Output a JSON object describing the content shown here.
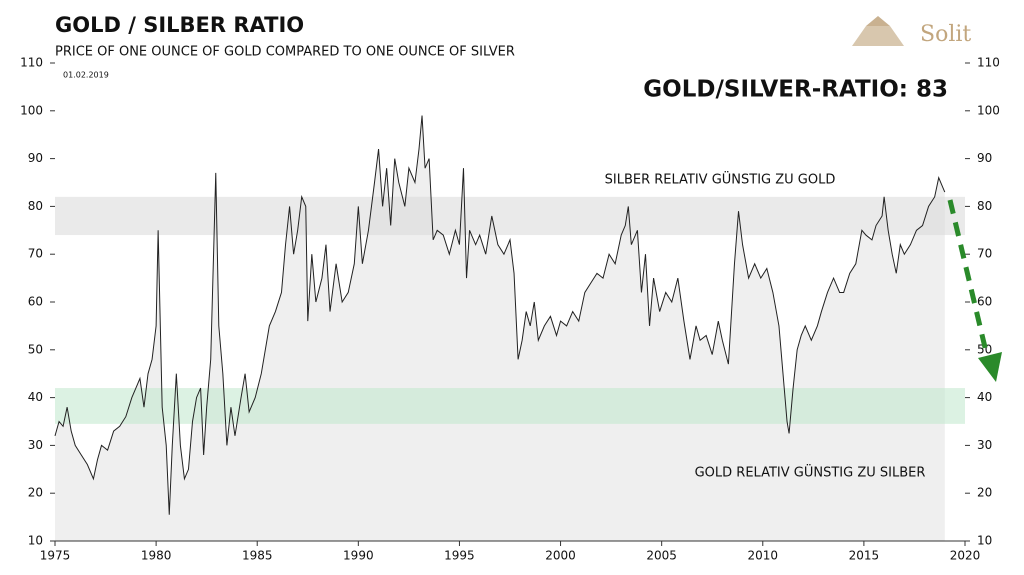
{
  "chart_data": {
    "type": "line",
    "title": "GOLD / SILBER  RATIO",
    "subtitle": "PRICE OF ONE OUNCE OF GOLD COMPARED TO ONE OUNCE OF SILVER",
    "date_label": "01.02.2019",
    "headline": "GOLD/SILVER-RATIO: 83",
    "logo": "Solit",
    "color": "#222222",
    "fill": "#efefef",
    "xlim": [
      1975,
      2020
    ],
    "xticks": [
      1975,
      1980,
      1985,
      1990,
      1995,
      2000,
      2005,
      2010,
      2015,
      2020
    ],
    "ylim": [
      10,
      110
    ],
    "yticks": [
      10,
      20,
      30,
      40,
      50,
      60,
      70,
      80,
      90,
      100,
      110
    ],
    "bands": [
      {
        "label": "SILBER RELATIV GÜNSTIG ZU GOLD",
        "range": [
          74,
          82
        ],
        "color": "#d8d8d8"
      },
      {
        "label": "GOLD RELATIV GÜNSTIG ZU SILBER",
        "range": [
          34.5,
          42
        ],
        "color": "#bfe8cc"
      }
    ],
    "x": [
      1975.0,
      1975.2,
      1975.4,
      1975.6,
      1975.8,
      1976.0,
      1976.3,
      1976.6,
      1976.9,
      1977.1,
      1977.3,
      1977.6,
      1977.9,
      1978.2,
      1978.5,
      1978.8,
      1979.0,
      1979.2,
      1979.4,
      1979.6,
      1979.8,
      1980.0,
      1980.1,
      1980.3,
      1980.5,
      1980.65,
      1980.8,
      1981.0,
      1981.2,
      1981.4,
      1981.6,
      1981.8,
      1982.0,
      1982.2,
      1982.35,
      1982.5,
      1982.7,
      1982.95,
      1983.1,
      1983.3,
      1983.5,
      1983.7,
      1983.9,
      1984.2,
      1984.4,
      1984.6,
      1984.9,
      1985.2,
      1985.4,
      1985.6,
      1985.9,
      1986.2,
      1986.4,
      1986.6,
      1986.8,
      1987.0,
      1987.2,
      1987.4,
      1987.5,
      1987.7,
      1987.9,
      1988.2,
      1988.4,
      1988.6,
      1988.9,
      1989.2,
      1989.5,
      1989.8,
      1990.0,
      1990.2,
      1990.5,
      1990.8,
      1991.0,
      1991.2,
      1991.4,
      1991.6,
      1991.8,
      1992.0,
      1992.3,
      1992.5,
      1992.8,
      1993.0,
      1993.15,
      1993.3,
      1993.5,
      1993.7,
      1993.9,
      1994.2,
      1994.5,
      1994.8,
      1995.0,
      1995.2,
      1995.35,
      1995.5,
      1995.8,
      1996.0,
      1996.3,
      1996.6,
      1996.9,
      1997.2,
      1997.5,
      1997.7,
      1997.9,
      1998.1,
      1998.3,
      1998.5,
      1998.7,
      1998.9,
      1999.2,
      1999.5,
      1999.8,
      2000.0,
      2000.3,
      2000.6,
      2000.9,
      2001.2,
      2001.5,
      2001.8,
      2002.1,
      2002.4,
      2002.7,
      2003.0,
      2003.2,
      2003.35,
      2003.5,
      2003.8,
      2004.0,
      2004.2,
      2004.4,
      2004.6,
      2004.9,
      2005.2,
      2005.5,
      2005.8,
      2006.1,
      2006.4,
      2006.7,
      2006.9,
      2007.2,
      2007.5,
      2007.8,
      2008.0,
      2008.3,
      2008.6,
      2008.8,
      2009.0,
      2009.3,
      2009.6,
      2009.9,
      2010.2,
      2010.5,
      2010.8,
      2011.0,
      2011.2,
      2011.3,
      2011.5,
      2011.7,
      2011.9,
      2012.1,
      2012.4,
      2012.7,
      2012.9,
      2013.2,
      2013.5,
      2013.8,
      2014.0,
      2014.3,
      2014.6,
      2014.9,
      2015.1,
      2015.4,
      2015.6,
      2015.9,
      2016.0,
      2016.2,
      2016.4,
      2016.6,
      2016.8,
      2017.0,
      2017.3,
      2017.6,
      2017.9,
      2018.2,
      2018.5,
      2018.7,
      2018.9,
      2019.0
    ],
    "values": [
      32,
      35,
      34,
      38,
      33,
      30,
      28,
      26,
      23,
      27,
      30,
      29,
      33,
      34,
      36,
      40,
      42,
      44,
      38,
      45,
      48,
      55,
      75,
      38,
      30,
      15.5,
      30,
      45,
      30,
      23,
      25,
      35,
      40,
      42,
      28,
      38,
      48,
      87,
      55,
      45,
      30,
      38,
      32,
      40,
      45,
      37,
      40,
      45,
      50,
      55,
      58,
      62,
      72,
      80,
      70,
      75,
      82,
      80,
      56,
      70,
      60,
      65,
      72,
      58,
      68,
      60,
      62,
      68,
      80,
      68,
      75,
      85,
      92,
      80,
      88,
      76,
      90,
      85,
      80,
      88,
      85,
      92,
      99,
      88,
      90,
      73,
      75,
      74,
      70,
      75,
      72,
      88,
      65,
      75,
      72,
      74,
      70,
      78,
      72,
      70,
      73,
      66,
      48,
      52,
      58,
      55,
      60,
      52,
      55,
      57,
      53,
      56,
      55,
      58,
      56,
      62,
      64,
      66,
      65,
      70,
      68,
      74,
      76,
      80,
      72,
      75,
      62,
      70,
      55,
      65,
      58,
      62,
      60,
      65,
      56,
      48,
      55,
      52,
      53,
      49,
      56,
      52,
      47,
      68,
      79,
      72,
      65,
      68,
      65,
      67,
      62,
      55,
      45,
      35,
      32.5,
      42,
      50,
      53,
      55,
      52,
      55,
      58,
      62,
      65,
      62,
      62,
      66,
      68,
      75,
      74,
      73,
      76,
      78,
      82,
      75,
      70,
      66,
      72,
      70,
      72,
      75,
      76,
      80,
      82,
      86,
      84,
      83
    ]
  }
}
